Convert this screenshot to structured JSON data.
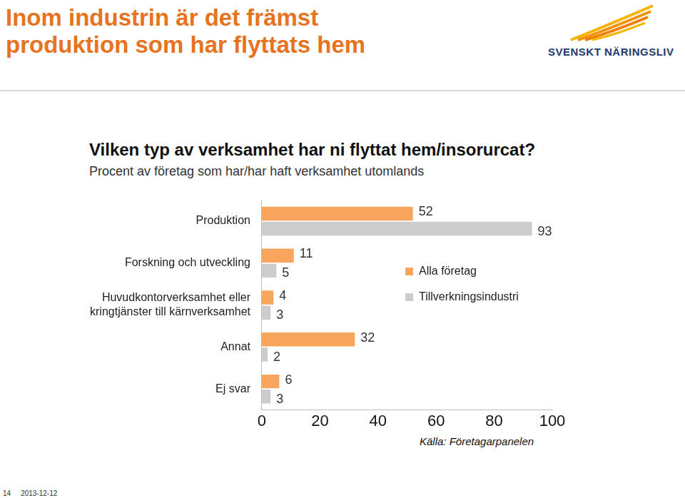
{
  "header": {
    "title": "Inom industrin är det främst produktion som har flyttats hem",
    "logo": "SVENSKT NÄRINGSLIV"
  },
  "chart_data": {
    "type": "bar",
    "orientation": "horizontal",
    "title": "Vilken typ av verksamhet har ni flyttat hem/insorurcat?",
    "subtitle": "Procent av företag som har/har haft verksamhet utomlands",
    "categories": [
      "Produktion",
      "Forskning och utveckling",
      [
        "Huvudkontorverksamhet eller",
        "kringtjänster till kärnverksamhet"
      ],
      "Annat",
      "Ej svar"
    ],
    "series": [
      {
        "name": "Alla företag",
        "color": "#f8a65e",
        "values": [
          52,
          11,
          4,
          32,
          6
        ]
      },
      {
        "name": "Tillverkningsindustri",
        "color": "#cccccc",
        "values": [
          93,
          5,
          3,
          2,
          3
        ]
      }
    ],
    "xlim": [
      0,
      100
    ],
    "xticks": [
      0,
      20,
      40,
      60,
      80,
      100
    ],
    "grid": false,
    "legend": "right",
    "data_labels": true,
    "source": "Källa: Företagarpanelen"
  },
  "footer": {
    "page": "14",
    "date": "2013-12-12"
  }
}
